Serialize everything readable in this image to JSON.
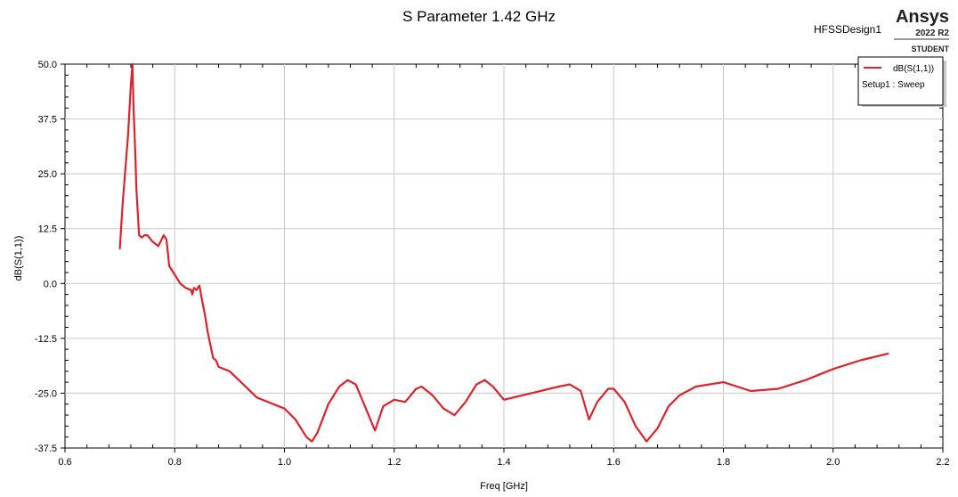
{
  "header": {
    "design_name": "HFSSDesign1",
    "brand": "Ansys",
    "version": "2022 R2",
    "edition": "STUDENT"
  },
  "legend": {
    "entries": [
      {
        "label": "dB(S(1,1))",
        "color": "#d9232d"
      }
    ],
    "setup_label": "Setup1 : Sweep",
    "placement": "top-right"
  },
  "chart_data": {
    "type": "line",
    "title": "S Parameter 1.42 GHz",
    "xlabel": "Freq [GHz]",
    "ylabel": "dB(S(1,1))",
    "xlim": [
      0.6,
      2.2
    ],
    "ylim": [
      -37.5,
      50.0
    ],
    "grid": true,
    "x_ticks": [
      0.6,
      0.8,
      1.0,
      1.2,
      1.4,
      1.6,
      1.8,
      2.0,
      2.2
    ],
    "x_tick_labels": [
      "0.6",
      "0.8",
      "1.0",
      "1.2",
      "1.4",
      "1.6",
      "1.8",
      "2.0",
      "2.2"
    ],
    "y_ticks": [
      50.0,
      37.5,
      25.0,
      12.5,
      0.0,
      -12.5,
      -25.0,
      -37.5
    ],
    "y_tick_labels": [
      "50.0",
      "37.5",
      "25.0",
      "12.5",
      "0.0",
      "-12.5",
      "-25.0",
      "-37.5"
    ],
    "series": [
      {
        "name": "dB(S(1,1))",
        "color": "#d9232d",
        "x": [
          0.7,
          0.705,
          0.71,
          0.715,
          0.72,
          0.723,
          0.725,
          0.728,
          0.73,
          0.735,
          0.74,
          0.745,
          0.75,
          0.76,
          0.77,
          0.78,
          0.785,
          0.79,
          0.795,
          0.8,
          0.81,
          0.82,
          0.83,
          0.832,
          0.835,
          0.84,
          0.842,
          0.845,
          0.85,
          0.855,
          0.86,
          0.865,
          0.87,
          0.875,
          0.88,
          0.9,
          0.95,
          1.0,
          1.02,
          1.04,
          1.05,
          1.06,
          1.08,
          1.1,
          1.115,
          1.13,
          1.15,
          1.165,
          1.18,
          1.2,
          1.22,
          1.24,
          1.25,
          1.27,
          1.29,
          1.31,
          1.33,
          1.35,
          1.365,
          1.38,
          1.4,
          1.45,
          1.5,
          1.52,
          1.54,
          1.555,
          1.57,
          1.59,
          1.6,
          1.62,
          1.64,
          1.66,
          1.68,
          1.7,
          1.72,
          1.75,
          1.8,
          1.85,
          1.9,
          1.95,
          2.0,
          2.05,
          2.1
        ],
        "values": [
          8,
          18,
          26,
          34,
          45,
          50,
          40,
          30,
          22,
          11,
          10.5,
          11,
          11,
          9.5,
          8.5,
          11,
          10,
          4,
          3,
          2,
          0,
          -1,
          -1.5,
          -2.5,
          -1,
          -1.5,
          -1,
          -0.5,
          -4,
          -7,
          -11,
          -14,
          -17,
          -17.5,
          -19,
          -20,
          -26,
          -28.5,
          -31,
          -35,
          -36,
          -34,
          -27.5,
          -23.5,
          -22,
          -23,
          -29,
          -33.5,
          -28,
          -26.5,
          -27,
          -24,
          -23.5,
          -25.5,
          -28.5,
          -30,
          -27,
          -23,
          -22,
          -23.5,
          -26.5,
          -25,
          -23.5,
          -23,
          -24.5,
          -31,
          -27,
          -24,
          -24,
          -27,
          -32.5,
          -36,
          -33,
          -28,
          -25.5,
          -23.5,
          -22.5,
          -24.5,
          -24,
          -22,
          -19.5,
          -17.5,
          -16
        ]
      }
    ]
  }
}
